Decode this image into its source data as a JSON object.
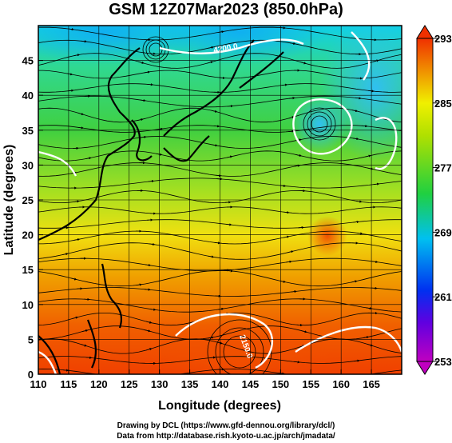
{
  "title": "GSM 12Z07Mar2023 (850.0hPa)",
  "x_axis": {
    "label": "Longitude (degrees)",
    "ticks": [
      "110",
      "115",
      "120",
      "125",
      "130",
      "135",
      "140",
      "145",
      "150",
      "155",
      "160",
      "165"
    ],
    "range": [
      110,
      170
    ]
  },
  "y_axis": {
    "label": "Latitude  (degrees)",
    "ticks": [
      "0",
      "5",
      "10",
      "15",
      "20",
      "25",
      "30",
      "35",
      "40",
      "45"
    ],
    "range": [
      0,
      50
    ]
  },
  "colorbar": {
    "ticks": [
      "253",
      "261",
      "269",
      "277",
      "285",
      "293"
    ],
    "range": [
      253,
      293
    ],
    "colors": [
      "#c000c0",
      "#2020e0",
      "#00c8f0",
      "#20d040",
      "#f0f000",
      "#f04000"
    ]
  },
  "contour_labels": {
    "north": "4200.0",
    "south": "2150.0"
  },
  "credits": {
    "line1": "Drawing by DCL (https://www.gfd-dennou.org/library/dcl/)",
    "line2": "Data from http://database.rish.kyoto-u.ac.jp/arch/jmadata/"
  }
}
